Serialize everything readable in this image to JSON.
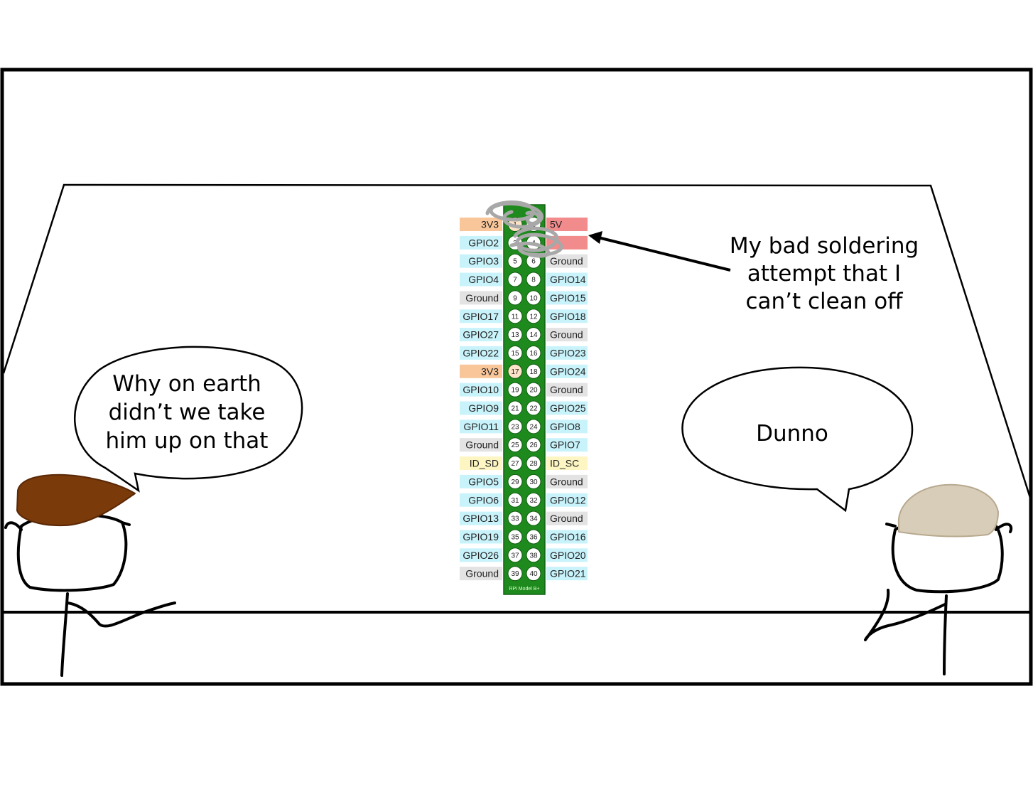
{
  "bubbles": {
    "left": [
      "Why on earth",
      "didn’t we take",
      "him up on that"
    ],
    "right": [
      "Dunno"
    ]
  },
  "annotation": [
    "My bad soldering",
    "attempt that I",
    "can’t clean off"
  ],
  "board": {
    "caption": "RPi Model B+"
  },
  "colors": {
    "power3v3": "#f9c69a",
    "power5v": "#f28b8b",
    "gpio": "#c9f3fb",
    "ground": "#e3e3e3",
    "id": "#fdf6c2",
    "board_green": "#1e8a1e",
    "hair_left": "#7a3a0a",
    "cap_right": "#d8cdb8",
    "scribble": "#a8a8a8"
  },
  "pins": [
    {
      "left": "3V3",
      "ln": "1",
      "rn": "2",
      "right": "5V",
      "lt": "power3v3",
      "rt": "power5v"
    },
    {
      "left": "GPIO2",
      "ln": "3",
      "rn": "4",
      "right": "",
      "lt": "gpio",
      "rt": "power5v"
    },
    {
      "left": "GPIO3",
      "ln": "5",
      "rn": "6",
      "right": "Ground",
      "lt": "gpio",
      "rt": "ground"
    },
    {
      "left": "GPIO4",
      "ln": "7",
      "rn": "8",
      "right": "GPIO14",
      "lt": "gpio",
      "rt": "gpio"
    },
    {
      "left": "Ground",
      "ln": "9",
      "rn": "10",
      "right": "GPIO15",
      "lt": "ground",
      "rt": "gpio"
    },
    {
      "left": "GPIO17",
      "ln": "11",
      "rn": "12",
      "right": "GPIO18",
      "lt": "gpio",
      "rt": "gpio"
    },
    {
      "left": "GPIO27",
      "ln": "13",
      "rn": "14",
      "right": "Ground",
      "lt": "gpio",
      "rt": "ground"
    },
    {
      "left": "GPIO22",
      "ln": "15",
      "rn": "16",
      "right": "GPIO23",
      "lt": "gpio",
      "rt": "gpio"
    },
    {
      "left": "3V3",
      "ln": "17",
      "rn": "18",
      "right": "GPIO24",
      "lt": "power3v3",
      "rt": "gpio"
    },
    {
      "left": "GPIO10",
      "ln": "19",
      "rn": "20",
      "right": "Ground",
      "lt": "gpio",
      "rt": "ground"
    },
    {
      "left": "GPIO9",
      "ln": "21",
      "rn": "22",
      "right": "GPIO25",
      "lt": "gpio",
      "rt": "gpio"
    },
    {
      "left": "GPIO11",
      "ln": "23",
      "rn": "24",
      "right": "GPIO8",
      "lt": "gpio",
      "rt": "gpio"
    },
    {
      "left": "Ground",
      "ln": "25",
      "rn": "26",
      "right": "GPIO7",
      "lt": "ground",
      "rt": "gpio"
    },
    {
      "left": "ID_SD",
      "ln": "27",
      "rn": "28",
      "right": "ID_SC",
      "lt": "id",
      "rt": "id"
    },
    {
      "left": "GPIO5",
      "ln": "29",
      "rn": "30",
      "right": "Ground",
      "lt": "gpio",
      "rt": "ground"
    },
    {
      "left": "GPIO6",
      "ln": "31",
      "rn": "32",
      "right": "GPIO12",
      "lt": "gpio",
      "rt": "gpio"
    },
    {
      "left": "GPIO13",
      "ln": "33",
      "rn": "34",
      "right": "Ground",
      "lt": "gpio",
      "rt": "ground"
    },
    {
      "left": "GPIO19",
      "ln": "35",
      "rn": "36",
      "right": "GPIO16",
      "lt": "gpio",
      "rt": "gpio"
    },
    {
      "left": "GPIO26",
      "ln": "37",
      "rn": "38",
      "right": "GPIO20",
      "lt": "gpio",
      "rt": "gpio"
    },
    {
      "left": "Ground",
      "ln": "39",
      "rn": "40",
      "right": "GPIO21",
      "lt": "ground",
      "rt": "gpio"
    }
  ]
}
